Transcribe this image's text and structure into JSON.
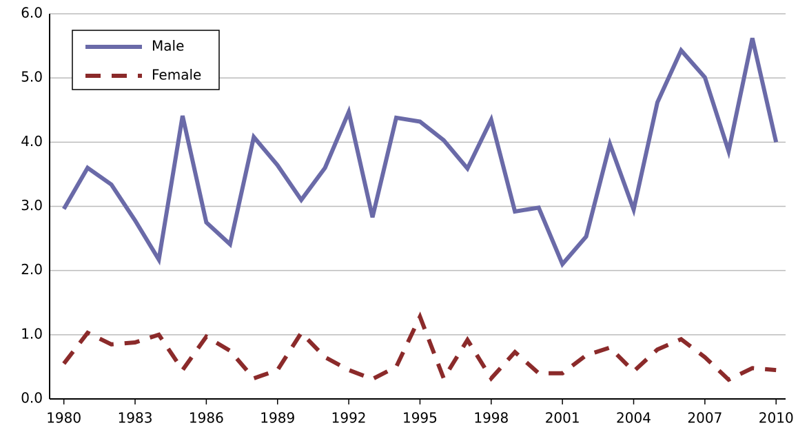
{
  "chart_data": {
    "type": "line",
    "x": [
      1980,
      1981,
      1982,
      1983,
      1984,
      1985,
      1986,
      1987,
      1988,
      1989,
      1990,
      1991,
      1992,
      1993,
      1994,
      1995,
      1996,
      1997,
      1998,
      1999,
      2000,
      2001,
      2002,
      2003,
      2004,
      2005,
      2006,
      2007,
      2008,
      2009,
      2010
    ],
    "series": [
      {
        "name": "Male",
        "color": "#6a6aa8",
        "dash": false,
        "values": [
          2.96,
          3.6,
          3.34,
          2.78,
          2.17,
          4.41,
          2.75,
          2.41,
          4.08,
          3.64,
          3.1,
          3.6,
          4.47,
          2.83,
          4.38,
          4.32,
          4.03,
          3.59,
          4.35,
          2.92,
          2.98,
          2.1,
          2.53,
          3.97,
          2.95,
          4.62,
          5.43,
          5.01,
          3.86,
          5.62,
          4.0
        ]
      },
      {
        "name": "Female",
        "color": "#8b2a2a",
        "dash": true,
        "values": [
          0.55,
          1.03,
          0.85,
          0.88,
          1.0,
          0.45,
          0.97,
          0.75,
          0.32,
          0.45,
          1.03,
          0.65,
          0.45,
          0.31,
          0.5,
          1.28,
          0.32,
          0.92,
          0.32,
          0.73,
          0.4,
          0.4,
          0.68,
          0.8,
          0.43,
          0.77,
          0.93,
          0.65,
          0.3,
          0.48,
          0.45
        ]
      }
    ],
    "xlim": [
      1979.4,
      2010.4
    ],
    "xticks": [
      1980,
      1983,
      1986,
      1989,
      1992,
      1995,
      1998,
      2001,
      2004,
      2007,
      2010
    ],
    "ylim": [
      0,
      6
    ],
    "yticks": [
      {
        "value": 0,
        "label": "0.0"
      },
      {
        "value": 1,
        "label": "1.0"
      },
      {
        "value": 2,
        "label": "2.0"
      },
      {
        "value": 3,
        "label": "3.0"
      },
      {
        "value": 4,
        "label": "4.0"
      },
      {
        "value": 5,
        "label": "5.0"
      },
      {
        "value": 6,
        "label": "6.0"
      }
    ],
    "grid": true,
    "legend": "upper-left"
  }
}
